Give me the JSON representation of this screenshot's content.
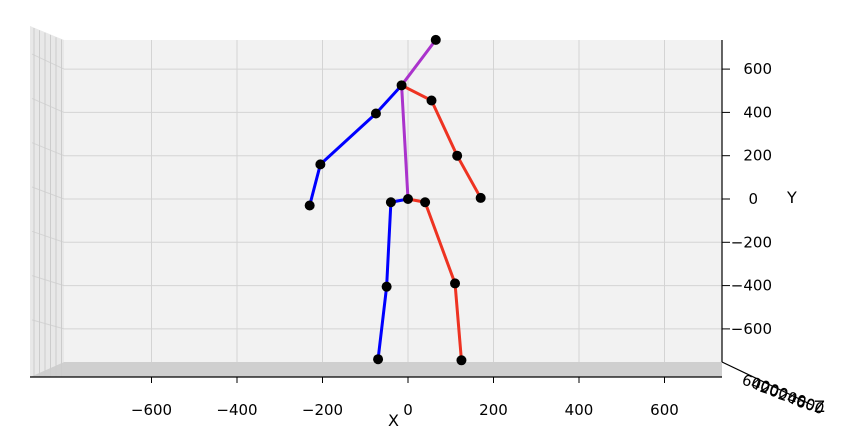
{
  "chart_data": {
    "type": "scatter",
    "subtype": "3d-skeleton",
    "title": "",
    "xlabel": "X",
    "ylabel": "Y",
    "zlabel": "Z",
    "x_ticks": [
      -600,
      -400,
      -200,
      0,
      200,
      400,
      600
    ],
    "y_ticks": [
      600,
      400,
      200,
      0,
      -200,
      -400,
      -600
    ],
    "x_tick_labels": [
      "−600",
      "−400",
      "−200",
      "0",
      "200",
      "400",
      "600"
    ],
    "y_tick_labels": [
      "600",
      "400",
      "200",
      "0",
      "−200",
      "−400",
      "−600"
    ],
    "z_tick_labels": [
      "600",
      "400",
      "200",
      "0",
      "200",
      "400",
      "600"
    ],
    "xlim": [
      -800,
      800
    ],
    "ylim": [
      -800,
      800
    ],
    "grid": true,
    "colors": {
      "left": "#0000ff",
      "right": "#ee3322",
      "spine": "#aa33cc",
      "joint": "#000000",
      "pane": "#f2f2f2",
      "floor": "#cfcfcf",
      "grid": "#d4d4d4"
    },
    "joints": [
      {
        "name": "pelvis",
        "x": 0,
        "y": 0
      },
      {
        "name": "right_hip",
        "x": 40,
        "y": -15
      },
      {
        "name": "right_knee",
        "x": 110,
        "y": -390
      },
      {
        "name": "right_ankle",
        "x": 125,
        "y": -745
      },
      {
        "name": "left_hip",
        "x": -40,
        "y": -15
      },
      {
        "name": "left_knee",
        "x": -50,
        "y": -405
      },
      {
        "name": "left_ankle",
        "x": -70,
        "y": -740
      },
      {
        "name": "thorax",
        "x": -15,
        "y": 525
      },
      {
        "name": "head",
        "x": 65,
        "y": 735
      },
      {
        "name": "right_shoulder",
        "x": 55,
        "y": 455
      },
      {
        "name": "right_elbow",
        "x": 115,
        "y": 200
      },
      {
        "name": "right_wrist",
        "x": 170,
        "y": 5
      },
      {
        "name": "left_shoulder",
        "x": -75,
        "y": 395
      },
      {
        "name": "left_elbow",
        "x": -205,
        "y": 160
      },
      {
        "name": "left_wrist",
        "x": -230,
        "y": -30
      }
    ],
    "bones": [
      {
        "from": 0,
        "to": 1,
        "side": "right"
      },
      {
        "from": 1,
        "to": 2,
        "side": "right"
      },
      {
        "from": 2,
        "to": 3,
        "side": "right"
      },
      {
        "from": 0,
        "to": 4,
        "side": "left"
      },
      {
        "from": 4,
        "to": 5,
        "side": "left"
      },
      {
        "from": 5,
        "to": 6,
        "side": "left"
      },
      {
        "from": 0,
        "to": 7,
        "side": "spine"
      },
      {
        "from": 7,
        "to": 8,
        "side": "spine"
      },
      {
        "from": 7,
        "to": 9,
        "side": "right"
      },
      {
        "from": 9,
        "to": 10,
        "side": "right"
      },
      {
        "from": 10,
        "to": 11,
        "side": "right"
      },
      {
        "from": 7,
        "to": 12,
        "side": "left"
      },
      {
        "from": 12,
        "to": 13,
        "side": "left"
      },
      {
        "from": 13,
        "to": 14,
        "side": "left"
      }
    ]
  }
}
